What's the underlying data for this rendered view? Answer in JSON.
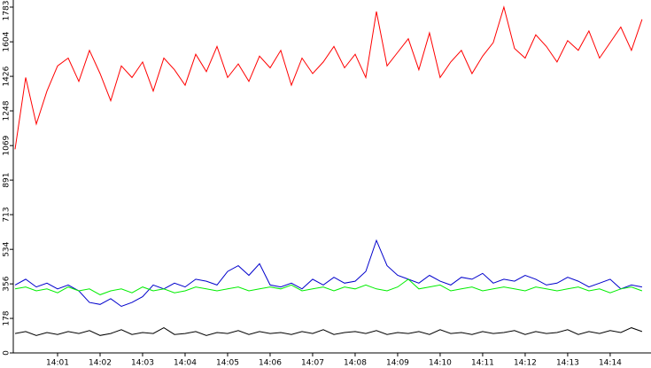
{
  "chart_data": {
    "type": "line",
    "x": [
      0,
      0.25,
      0.5,
      0.75,
      1,
      1.25,
      1.5,
      1.75,
      2,
      2.25,
      2.5,
      2.75,
      3,
      3.25,
      3.5,
      3.75,
      4,
      4.25,
      4.5,
      4.75,
      5,
      5.25,
      5.5,
      5.75,
      6,
      6.25,
      6.5,
      6.75,
      7,
      7.25,
      7.5,
      7.75,
      8,
      8.25,
      8.5,
      8.75,
      9,
      9.25,
      9.5,
      9.75,
      10,
      10.25,
      10.5,
      10.75,
      11,
      11.25,
      11.5,
      11.75,
      12,
      12.25,
      12.5,
      12.75,
      13,
      13.25,
      13.5,
      13.75,
      14,
      14.25,
      14.5,
      14.75
    ],
    "series": [
      {
        "color": "#ff0000",
        "values": [
          1050,
          1420,
          1180,
          1350,
          1480,
          1520,
          1400,
          1560,
          1440,
          1300,
          1480,
          1420,
          1500,
          1350,
          1520,
          1460,
          1380,
          1540,
          1450,
          1580,
          1420,
          1490,
          1400,
          1530,
          1470,
          1560,
          1380,
          1520,
          1440,
          1500,
          1580,
          1470,
          1540,
          1420,
          1760,
          1480,
          1550,
          1620,
          1460,
          1650,
          1420,
          1500,
          1560,
          1440,
          1530,
          1600,
          1783,
          1570,
          1520,
          1640,
          1580,
          1500,
          1610,
          1560,
          1660,
          1520,
          1600,
          1680,
          1560,
          1720
        ]
      },
      {
        "color": "#0000cc",
        "values": [
          350,
          380,
          340,
          360,
          330,
          350,
          320,
          260,
          250,
          280,
          240,
          260,
          290,
          350,
          330,
          360,
          340,
          380,
          370,
          350,
          420,
          450,
          400,
          460,
          350,
          340,
          360,
          330,
          380,
          350,
          390,
          360,
          370,
          420,
          580,
          450,
          400,
          380,
          360,
          400,
          370,
          350,
          390,
          380,
          410,
          360,
          380,
          370,
          400,
          380,
          350,
          360,
          390,
          370,
          340,
          360,
          380,
          330,
          350,
          340
        ]
      },
      {
        "color": "#00ee00",
        "values": [
          330,
          340,
          320,
          330,
          310,
          340,
          320,
          330,
          300,
          320,
          330,
          310,
          340,
          320,
          330,
          310,
          320,
          340,
          330,
          320,
          330,
          340,
          320,
          330,
          340,
          330,
          350,
          320,
          330,
          340,
          320,
          340,
          330,
          350,
          330,
          320,
          340,
          380,
          330,
          340,
          350,
          320,
          330,
          340,
          320,
          330,
          340,
          330,
          320,
          340,
          330,
          320,
          330,
          340,
          320,
          330,
          310,
          330,
          340,
          320
        ]
      },
      {
        "color": "#000000",
        "values": [
          100,
          110,
          90,
          105,
          95,
          110,
          100,
          115,
          90,
          100,
          120,
          95,
          105,
          100,
          130,
          95,
          100,
          110,
          90,
          105,
          100,
          115,
          95,
          110,
          100,
          105,
          95,
          110,
          100,
          120,
          95,
          105,
          110,
          100,
          115,
          95,
          105,
          100,
          110,
          95,
          120,
          100,
          105,
          95,
          110,
          100,
          105,
          115,
          95,
          110,
          100,
          105,
          120,
          95,
          110,
          100,
          115,
          105,
          130,
          110
        ]
      }
    ],
    "xlim": [
      0,
      14.96
    ],
    "xticks": [
      {
        "value": 1,
        "label": "14:01"
      },
      {
        "value": 2,
        "label": "14:02"
      },
      {
        "value": 3,
        "label": "14:03"
      },
      {
        "value": 4,
        "label": "14:04"
      },
      {
        "value": 5,
        "label": "14:05"
      },
      {
        "value": 6,
        "label": "14:06"
      },
      {
        "value": 7,
        "label": "14:07"
      },
      {
        "value": 8,
        "label": "14:08"
      },
      {
        "value": 9,
        "label": "14:09"
      },
      {
        "value": 10,
        "label": "14:10"
      },
      {
        "value": 11,
        "label": "14:11"
      },
      {
        "value": 12,
        "label": "14:12"
      },
      {
        "value": 13,
        "label": "14:13"
      },
      {
        "value": 14,
        "label": "14:14"
      }
    ],
    "ylim": [
      0,
      1783
    ],
    "yticks": [
      0,
      178,
      356,
      534,
      713,
      891,
      1069,
      1248,
      1426,
      1604,
      1783
    ]
  }
}
